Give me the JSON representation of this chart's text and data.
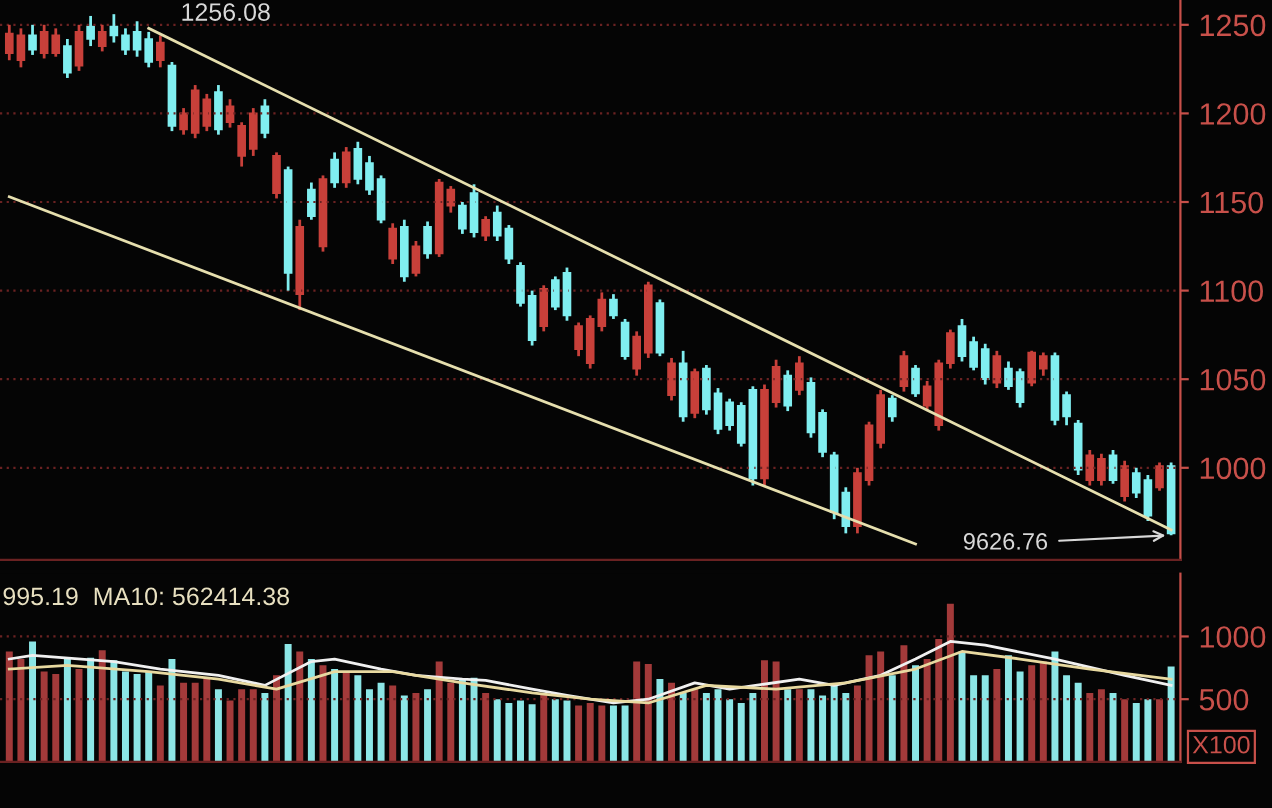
{
  "chart_data": [
    {
      "type": "candlestick",
      "categories": [
        null,
        null,
        null,
        null,
        null,
        null,
        null,
        null,
        null,
        null,
        null,
        null,
        null,
        null,
        null,
        null,
        null,
        null,
        null,
        null,
        null,
        null,
        null,
        null,
        null,
        null,
        null,
        null,
        null,
        null,
        null,
        null,
        null,
        null,
        null,
        null,
        null,
        null,
        null,
        null,
        null,
        null,
        null,
        null,
        null,
        null,
        null,
        null,
        null,
        null,
        null,
        null,
        null,
        null,
        null,
        null,
        null,
        null,
        null,
        null,
        null,
        null,
        null,
        null,
        null,
        null,
        null,
        null,
        null,
        null,
        null,
        null,
        null,
        null,
        null,
        null,
        null,
        null,
        null,
        null,
        null,
        null,
        null,
        null,
        null,
        null,
        null,
        null,
        null,
        null,
        null,
        null,
        null,
        null,
        null,
        null,
        null,
        null,
        null,
        null,
        null
      ],
      "ohlc": [
        [
          1234,
          1250,
          1230,
          1245
        ],
        [
          1230,
          1248,
          1226,
          1244
        ],
        [
          1244,
          1250,
          1233,
          1236
        ],
        [
          1234,
          1250,
          1231,
          1246
        ],
        [
          1234,
          1248,
          1232,
          1244
        ],
        [
          1238,
          1242,
          1220,
          1223
        ],
        [
          1227,
          1250,
          1224,
          1246
        ],
        [
          1249,
          1255,
          1238,
          1242
        ],
        [
          1238,
          1250,
          1235,
          1246
        ],
        [
          1249,
          1256,
          1240,
          1244
        ],
        [
          1244,
          1248,
          1233,
          1236
        ],
        [
          1246,
          1252,
          1232,
          1236
        ],
        [
          1242,
          1246,
          1226,
          1229
        ],
        [
          1230,
          1244,
          1226,
          1240
        ],
        [
          1227,
          1229,
          1190,
          1193
        ],
        [
          1191,
          1203,
          1188,
          1200
        ],
        [
          1189,
          1216,
          1186,
          1213
        ],
        [
          1193,
          1211,
          1190,
          1208
        ],
        [
          1212,
          1216,
          1188,
          1191
        ],
        [
          1195,
          1208,
          1192,
          1204
        ],
        [
          1176,
          1195,
          1170,
          1193
        ],
        [
          1180,
          1203,
          1176,
          1200
        ],
        [
          1204,
          1208,
          1186,
          1189
        ],
        [
          1155,
          1178,
          1152,
          1176
        ],
        [
          1168,
          1170,
          1100,
          1110
        ],
        [
          1098,
          1140,
          1089,
          1136
        ],
        [
          1157,
          1161,
          1140,
          1142
        ],
        [
          1125,
          1165,
          1122,
          1163
        ],
        [
          1174,
          1178,
          1158,
          1161
        ],
        [
          1161,
          1181,
          1158,
          1178
        ],
        [
          1180,
          1184,
          1160,
          1163
        ],
        [
          1172,
          1176,
          1154,
          1157
        ],
        [
          1163,
          1165,
          1138,
          1140
        ],
        [
          1118,
          1138,
          1115,
          1135
        ],
        [
          1136,
          1140,
          1105,
          1108
        ],
        [
          1110,
          1128,
          1108,
          1125
        ],
        [
          1136,
          1139,
          1118,
          1121
        ],
        [
          1121,
          1163,
          1119,
          1161
        ],
        [
          1148,
          1159,
          1144,
          1157
        ],
        [
          1148,
          1150,
          1132,
          1135
        ],
        [
          1155,
          1160,
          1130,
          1133
        ],
        [
          1131,
          1142,
          1128,
          1140
        ],
        [
          1144,
          1148,
          1128,
          1131
        ],
        [
          1135,
          1137,
          1115,
          1118
        ],
        [
          1114,
          1116,
          1091,
          1093
        ],
        [
          1097,
          1100,
          1069,
          1072
        ],
        [
          1080,
          1103,
          1077,
          1101
        ],
        [
          1106,
          1108,
          1089,
          1091
        ],
        [
          1110,
          1113,
          1083,
          1086
        ],
        [
          1067,
          1082,
          1063,
          1080
        ],
        [
          1059,
          1086,
          1056,
          1084
        ],
        [
          1080,
          1099,
          1077,
          1095
        ],
        [
          1095,
          1098,
          1084,
          1086
        ],
        [
          1082,
          1084,
          1061,
          1063
        ],
        [
          1056,
          1077,
          1052,
          1074
        ],
        [
          1065,
          1105,
          1062,
          1103
        ],
        [
          1093,
          1095,
          1063,
          1065
        ],
        [
          1041,
          1062,
          1038,
          1059
        ],
        [
          1059,
          1066,
          1026,
          1029
        ],
        [
          1031,
          1056,
          1028,
          1054
        ],
        [
          1056,
          1058,
          1030,
          1033
        ],
        [
          1042,
          1045,
          1019,
          1022
        ],
        [
          1037,
          1039,
          1021,
          1024
        ],
        [
          1035,
          1037,
          1012,
          1014
        ],
        [
          1044,
          1046,
          990,
          994
        ],
        [
          994,
          1047,
          990,
          1044
        ],
        [
          1037,
          1061,
          1034,
          1057
        ],
        [
          1052,
          1055,
          1032,
          1035
        ],
        [
          1044,
          1063,
          1041,
          1059
        ],
        [
          1048,
          1051,
          1017,
          1020
        ],
        [
          1031,
          1033,
          1006,
          1009
        ],
        [
          1007,
          1009,
          971,
          975
        ],
        [
          986,
          989,
          963,
          967
        ],
        [
          967,
          1000,
          963,
          997
        ],
        [
          993,
          1026,
          990,
          1024
        ],
        [
          1014,
          1044,
          1011,
          1041
        ],
        [
          1039,
          1041,
          1026,
          1029
        ],
        [
          1046,
          1066,
          1043,
          1063
        ],
        [
          1056,
          1058,
          1040,
          1042
        ],
        [
          1035,
          1049,
          1032,
          1046
        ],
        [
          1024,
          1061,
          1021,
          1059
        ],
        [
          1059,
          1078,
          1056,
          1076
        ],
        [
          1080,
          1084,
          1060,
          1063
        ],
        [
          1071,
          1074,
          1055,
          1057
        ],
        [
          1067,
          1070,
          1047,
          1050
        ],
        [
          1048,
          1066,
          1045,
          1063
        ],
        [
          1056,
          1060,
          1044,
          1046
        ],
        [
          1054,
          1056,
          1034,
          1037
        ],
        [
          1048,
          1066,
          1046,
          1065
        ],
        [
          1056,
          1065,
          1052,
          1063
        ],
        [
          1063,
          1065,
          1024,
          1027
        ],
        [
          1041,
          1043,
          1024,
          1029
        ],
        [
          1025,
          1027,
          996,
          999
        ],
        [
          993,
          1010,
          990,
          1007
        ],
        [
          993,
          1008,
          990,
          1005
        ],
        [
          1007,
          1010,
          991,
          993
        ],
        [
          984,
          1004,
          981,
          1001
        ],
        [
          997,
          1000,
          983,
          986
        ],
        [
          993,
          996,
          970,
          973
        ],
        [
          989,
          1003,
          987,
          1001
        ],
        [
          1001,
          1003,
          962,
          963
        ]
      ],
      "colors": [
        "#c8403a",
        "#c8403a",
        "#80eef0",
        "#c8403a",
        "#c8403a",
        "#80eef0",
        "#c8403a",
        "#80eef0",
        "#c8403a",
        "#80eef0",
        "#80eef0",
        "#80eef0",
        "#80eef0",
        "#c8403a",
        "#80eef0",
        "#c8403a",
        "#c8403a",
        "#c8403a",
        "#80eef0",
        "#c8403a",
        "#c8403a",
        "#c8403a",
        "#80eef0",
        "#c8403a",
        "#80eef0",
        "#c8403a",
        "#80eef0",
        "#c8403a",
        "#80eef0",
        "#c8403a",
        "#80eef0",
        "#80eef0",
        "#80eef0",
        "#c8403a",
        "#80eef0",
        "#c8403a",
        "#80eef0",
        "#c8403a",
        "#c8403a",
        "#80eef0",
        "#80eef0",
        "#c8403a",
        "#80eef0",
        "#80eef0",
        "#80eef0",
        "#80eef0",
        "#c8403a",
        "#80eef0",
        "#80eef0",
        "#c8403a",
        "#c8403a",
        "#c8403a",
        "#80eef0",
        "#80eef0",
        "#c8403a",
        "#c8403a",
        "#80eef0",
        "#c8403a",
        "#80eef0",
        "#c8403a",
        "#80eef0",
        "#80eef0",
        "#80eef0",
        "#80eef0",
        "#80eef0",
        "#c8403a",
        "#c8403a",
        "#80eef0",
        "#c8403a",
        "#80eef0",
        "#80eef0",
        "#80eef0",
        "#80eef0",
        "#c8403a",
        "#c8403a",
        "#c8403a",
        "#80eef0",
        "#c8403a",
        "#80eef0",
        "#c8403a",
        "#c8403a",
        "#c8403a",
        "#80eef0",
        "#80eef0",
        "#80eef0",
        "#c8403a",
        "#80eef0",
        "#80eef0",
        "#c8403a",
        "#c8403a",
        "#80eef0",
        "#80eef0",
        "#80eef0",
        "#c8403a",
        "#c8403a",
        "#80eef0",
        "#c8403a",
        "#80eef0",
        "#80eef0",
        "#c8403a",
        "#80eef0"
      ],
      "series": [
        {
          "type": "line",
          "color": "#e6dfae",
          "values": [
            null,
            null,
            null,
            null,
            null,
            null,
            null,
            null,
            null,
            null,
            null,
            null,
            1248,
            null,
            null,
            null,
            null,
            null,
            null,
            null,
            null,
            null,
            null,
            null,
            null,
            null,
            null,
            null,
            null,
            null,
            null,
            null,
            null,
            null,
            null,
            null,
            null,
            null,
            null,
            null,
            null,
            null,
            null,
            null,
            null,
            null,
            null,
            null,
            null,
            null,
            null,
            null,
            null,
            null,
            null,
            null,
            null,
            null,
            null,
            null,
            null,
            null,
            null,
            null,
            null,
            null,
            null,
            null,
            null,
            null,
            null,
            null,
            null,
            null,
            null,
            null,
            null,
            null,
            null,
            null,
            null,
            null,
            null,
            null,
            null,
            null,
            null,
            null,
            null,
            null,
            null,
            null,
            null,
            null,
            null,
            null,
            null,
            null,
            null,
            null,
            965
          ]
        },
        {
          "type": "line",
          "color": "#e6dfae",
          "values": [
            1153,
            null,
            null,
            null,
            null,
            null,
            null,
            null,
            null,
            null,
            null,
            null,
            null,
            null,
            null,
            null,
            null,
            null,
            null,
            null,
            null,
            null,
            null,
            null,
            null,
            null,
            null,
            null,
            null,
            null,
            null,
            null,
            null,
            null,
            null,
            null,
            null,
            null,
            null,
            null,
            null,
            null,
            null,
            null,
            null,
            null,
            null,
            null,
            null,
            null,
            null,
            null,
            null,
            null,
            null,
            null,
            null,
            null,
            null,
            null,
            null,
            null,
            null,
            null,
            null,
            null,
            null,
            null,
            null,
            null,
            null,
            null,
            null,
            null,
            null,
            null,
            null,
            null,
            957,
            null,
            null,
            null,
            null,
            null,
            null,
            null,
            null,
            null,
            null,
            null,
            null,
            null,
            null,
            null,
            null,
            null,
            null,
            null,
            null,
            null,
            null
          ]
        }
      ],
      "ylim": [
        948,
        1264
      ],
      "yticks": [
        1000,
        1050,
        1100,
        1150,
        1200,
        1250
      ],
      "grid": "y",
      "tick_labels": "y",
      "annotations": [
        "1256.08",
        "9626.76"
      ]
    },
    {
      "type": "bar",
      "categories": [
        null,
        null,
        null,
        null,
        null,
        null,
        null,
        null,
        null,
        null,
        null,
        null,
        null,
        null,
        null,
        null,
        null,
        null,
        null,
        null,
        null,
        null,
        null,
        null,
        null,
        null,
        null,
        null,
        null,
        null,
        null,
        null,
        null,
        null,
        null,
        null,
        null,
        null,
        null,
        null,
        null,
        null,
        null,
        null,
        null,
        null,
        null,
        null,
        null,
        null,
        null,
        null,
        null,
        null,
        null,
        null,
        null,
        null,
        null,
        null,
        null,
        null,
        null,
        null,
        null,
        null,
        null,
        null,
        null,
        null,
        null,
        null,
        null,
        null,
        null,
        null,
        null,
        null,
        null,
        null,
        null,
        null,
        null,
        null,
        null,
        null,
        null,
        null,
        null,
        null,
        null,
        null,
        null,
        null,
        null,
        null,
        null,
        null,
        null,
        null,
        null
      ],
      "values": [
        880,
        820,
        960,
        720,
        700,
        820,
        740,
        830,
        890,
        810,
        720,
        700,
        720,
        610,
        820,
        630,
        630,
        660,
        580,
        490,
        580,
        580,
        550,
        690,
        940,
        880,
        820,
        770,
        740,
        720,
        690,
        580,
        630,
        610,
        530,
        550,
        580,
        800,
        630,
        660,
        670,
        550,
        500,
        470,
        490,
        460,
        550,
        500,
        490,
        450,
        470,
        450,
        450,
        450,
        800,
        780,
        660,
        630,
        550,
        580,
        550,
        580,
        500,
        470,
        550,
        810,
        800,
        580,
        580,
        580,
        530,
        610,
        550,
        610,
        850,
        880,
        690,
        930,
        770,
        820,
        980,
        1260,
        880,
        690,
        690,
        740,
        850,
        720,
        770,
        800,
        880,
        690,
        630,
        550,
        580,
        550,
        500,
        470,
        500,
        500,
        760
      ],
      "colors": [
        "#a33a3a",
        "#a33a3a",
        "#8ce6e6",
        "#a33a3a",
        "#a33a3a",
        "#8ce6e6",
        "#a33a3a",
        "#8ce6e6",
        "#a33a3a",
        "#8ce6e6",
        "#8ce6e6",
        "#8ce6e6",
        "#8ce6e6",
        "#a33a3a",
        "#8ce6e6",
        "#a33a3a",
        "#a33a3a",
        "#a33a3a",
        "#8ce6e6",
        "#a33a3a",
        "#a33a3a",
        "#a33a3a",
        "#8ce6e6",
        "#a33a3a",
        "#8ce6e6",
        "#a33a3a",
        "#8ce6e6",
        "#a33a3a",
        "#8ce6e6",
        "#a33a3a",
        "#8ce6e6",
        "#8ce6e6",
        "#8ce6e6",
        "#a33a3a",
        "#8ce6e6",
        "#a33a3a",
        "#8ce6e6",
        "#a33a3a",
        "#a33a3a",
        "#8ce6e6",
        "#8ce6e6",
        "#a33a3a",
        "#8ce6e6",
        "#8ce6e6",
        "#8ce6e6",
        "#8ce6e6",
        "#a33a3a",
        "#8ce6e6",
        "#8ce6e6",
        "#a33a3a",
        "#a33a3a",
        "#a33a3a",
        "#8ce6e6",
        "#8ce6e6",
        "#a33a3a",
        "#a33a3a",
        "#8ce6e6",
        "#a33a3a",
        "#8ce6e6",
        "#a33a3a",
        "#8ce6e6",
        "#8ce6e6",
        "#8ce6e6",
        "#8ce6e6",
        "#8ce6e6",
        "#a33a3a",
        "#a33a3a",
        "#8ce6e6",
        "#a33a3a",
        "#8ce6e6",
        "#8ce6e6",
        "#8ce6e6",
        "#8ce6e6",
        "#a33a3a",
        "#a33a3a",
        "#a33a3a",
        "#8ce6e6",
        "#a33a3a",
        "#8ce6e6",
        "#a33a3a",
        "#a33a3a",
        "#a33a3a",
        "#8ce6e6",
        "#8ce6e6",
        "#8ce6e6",
        "#a33a3a",
        "#8ce6e6",
        "#8ce6e6",
        "#a33a3a",
        "#a33a3a",
        "#8ce6e6",
        "#8ce6e6",
        "#8ce6e6",
        "#a33a3a",
        "#a33a3a",
        "#8ce6e6",
        "#a33a3a",
        "#8ce6e6",
        "#8ce6e6",
        "#a33a3a",
        "#8ce6e6"
      ],
      "series": [
        {
          "type": "line",
          "color": "#f0f0f0",
          "values": [
            820,
            null,
            850,
            null,
            null,
            null,
            null,
            null,
            null,
            800,
            null,
            null,
            null,
            740,
            null,
            null,
            null,
            null,
            690,
            null,
            null,
            null,
            610,
            null,
            null,
            null,
            800,
            null,
            820,
            null,
            null,
            null,
            740,
            null,
            null,
            690,
            null,
            null,
            null,
            660,
            null,
            650,
            null,
            null,
            null,
            580,
            null,
            null,
            530,
            null,
            null,
            null,
            470,
            null,
            null,
            500,
            null,
            null,
            null,
            630,
            null,
            null,
            580,
            null,
            null,
            null,
            null,
            null,
            660,
            null,
            null,
            610,
            null,
            null,
            null,
            690,
            null,
            null,
            820,
            null,
            null,
            960,
            null,
            null,
            930,
            null,
            null,
            null,
            null,
            null,
            820,
            null,
            null,
            null,
            null,
            null,
            690,
            null,
            null,
            null,
            610
          ]
        },
        {
          "type": "line",
          "color": "#e8d9a0",
          "values": [
            740,
            null,
            null,
            null,
            null,
            770,
            null,
            null,
            null,
            null,
            null,
            null,
            720,
            null,
            null,
            null,
            null,
            null,
            660,
            null,
            null,
            null,
            null,
            580,
            null,
            null,
            null,
            null,
            720,
            null,
            null,
            null,
            null,
            720,
            null,
            null,
            null,
            null,
            null,
            630,
            null,
            null,
            null,
            null,
            null,
            550,
            null,
            null,
            null,
            null,
            500,
            null,
            null,
            null,
            null,
            470,
            null,
            null,
            null,
            null,
            610,
            null,
            null,
            null,
            null,
            null,
            580,
            null,
            null,
            null,
            null,
            null,
            630,
            null,
            null,
            null,
            null,
            null,
            740,
            null,
            null,
            null,
            880,
            null,
            null,
            null,
            null,
            820,
            null,
            null,
            null,
            null,
            null,
            740,
            null,
            null,
            null,
            null,
            null,
            null,
            660
          ]
        }
      ],
      "ylim": [
        0,
        1500
      ],
      "yticks": [
        500,
        1000
      ],
      "grid": "y",
      "tick_labels": "y",
      "annotations": [
        "995.19  MA10: 562414.38",
        "X100"
      ]
    }
  ]
}
